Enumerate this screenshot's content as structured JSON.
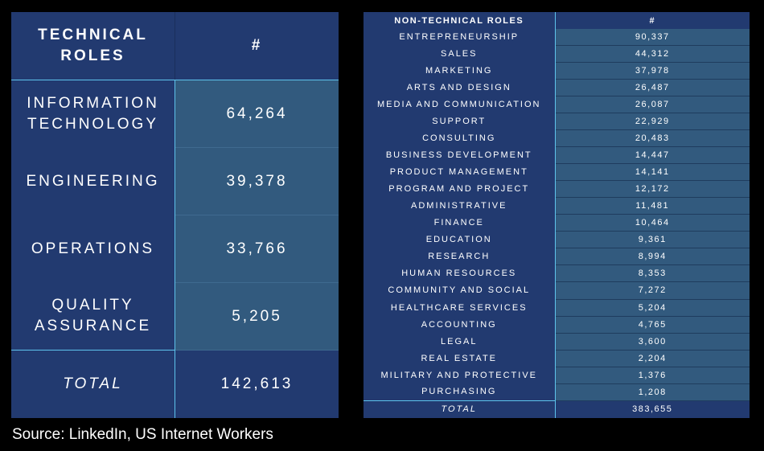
{
  "chart_data": [
    {
      "type": "table",
      "columns": [
        "TECHNICAL ROLES",
        "#"
      ],
      "rows": [
        {
          "label_lines": [
            "INFORMATION",
            "TECHNOLOGY"
          ],
          "value": "64,264"
        },
        {
          "label_lines": [
            "ENGINEERING"
          ],
          "value": "39,378"
        },
        {
          "label_lines": [
            "OPERATIONS"
          ],
          "value": "33,766"
        },
        {
          "label_lines": [
            "QUALITY",
            "ASSURANCE"
          ],
          "value": "5,205"
        }
      ],
      "total": {
        "label": "TOTAL",
        "value": "142,613"
      }
    },
    {
      "type": "table",
      "columns": [
        "NON-TECHNICAL ROLES",
        "#"
      ],
      "rows": [
        {
          "label": "ENTREPRENEURSHIP",
          "value": "90,337"
        },
        {
          "label": "SALES",
          "value": "44,312"
        },
        {
          "label": "MARKETING",
          "value": "37,978"
        },
        {
          "label": "ARTS AND DESIGN",
          "value": "26,487"
        },
        {
          "label": "MEDIA AND COMMUNICATION",
          "value": "26,087"
        },
        {
          "label": "SUPPORT",
          "value": "22,929"
        },
        {
          "label": "CONSULTING",
          "value": "20,483"
        },
        {
          "label": "BUSINESS DEVELOPMENT",
          "value": "14,447"
        },
        {
          "label": "PRODUCT MANAGEMENT",
          "value": "14,141"
        },
        {
          "label": "PROGRAM AND PROJECT",
          "value": "12,172"
        },
        {
          "label": "ADMINISTRATIVE",
          "value": "11,481"
        },
        {
          "label": "FINANCE",
          "value": "10,464"
        },
        {
          "label": "EDUCATION",
          "value": "9,361"
        },
        {
          "label": "RESEARCH",
          "value": "8,994"
        },
        {
          "label": "HUMAN RESOURCES",
          "value": "8,353"
        },
        {
          "label": "COMMUNITY AND SOCIAL",
          "value": "7,272"
        },
        {
          "label": "HEALTHCARE SERVICES",
          "value": "5,204"
        },
        {
          "label": "ACCOUNTING",
          "value": "4,765"
        },
        {
          "label": "LEGAL",
          "value": "3,600"
        },
        {
          "label": "REAL ESTATE",
          "value": "2,204"
        },
        {
          "label": "MILITARY AND PROTECTIVE",
          "value": "1,376"
        },
        {
          "label": "PURCHASING",
          "value": "1,208"
        }
      ],
      "total": {
        "label": "TOTAL",
        "value": "383,655"
      }
    }
  ],
  "source": "Source: LinkedIn, US Internet Workers",
  "colors": {
    "background": "#000000",
    "header_fill": "#223a70",
    "value_fill": "#325a7e",
    "divider": "#5ec3ec",
    "text": "#ffffff"
  }
}
